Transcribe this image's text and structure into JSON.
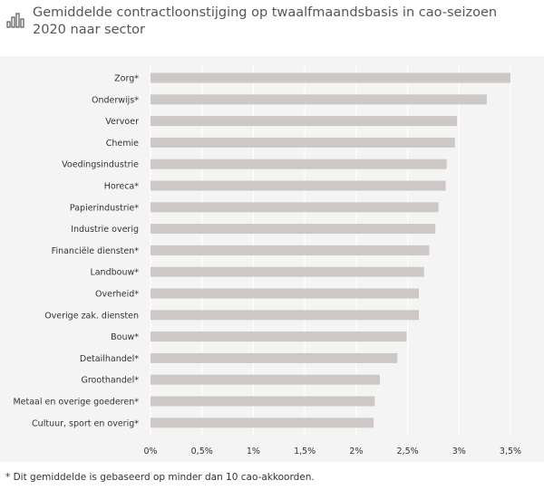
{
  "header": {
    "title": "Gemiddelde contractloonstijging op twaalfmaandsbasis in cao-seizoen 2020 naar sector",
    "icon": "bar-chart-icon"
  },
  "chart_data": {
    "type": "bar",
    "orientation": "horizontal",
    "title": "",
    "xlabel": "",
    "ylabel": "",
    "categories": [
      "Zorg*",
      "Onderwijs*",
      "Vervoer",
      "Chemie",
      "Voedingsindustrie",
      "Horeca*",
      "Papierindustrie*",
      "Industrie overig",
      "Financiële diensten*",
      "Landbouw*",
      "Overheid*",
      "Overige zak. diensten",
      "Bouw*",
      "Detailhandel*",
      "Groothandel*",
      "Metaal en overige goederen*",
      "Cultuur, sport en overig*"
    ],
    "values": [
      3.5,
      3.27,
      2.98,
      2.96,
      2.88,
      2.87,
      2.8,
      2.77,
      2.71,
      2.66,
      2.61,
      2.61,
      2.49,
      2.4,
      2.23,
      2.18,
      2.17
    ],
    "xlim": [
      0,
      3.5
    ],
    "x_ticks": [
      0,
      0.5,
      1,
      1.5,
      2,
      2.5,
      3,
      3.5
    ],
    "x_tick_labels": [
      "0%",
      "0,5%",
      "1%",
      "1,5%",
      "2%",
      "2,5%",
      "3%",
      "3,5%"
    ],
    "grid": true,
    "legend": "none",
    "bar_color": "#cdc8c5",
    "grid_color": "#ffffff"
  },
  "footnote": "* Dit gemiddelde is gebaseerd op minder dan 10 cao-akkoorden."
}
